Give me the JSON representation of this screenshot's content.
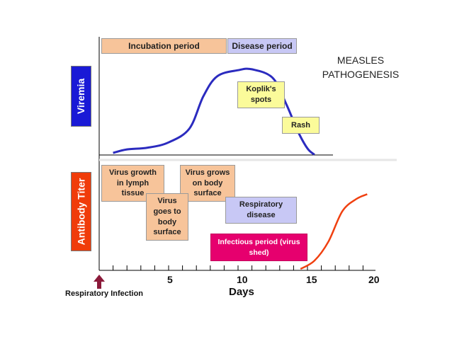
{
  "title": {
    "line1": "MEASLES",
    "line2": "PATHOGENESIS"
  },
  "y_labels": {
    "viremia": "Viremia",
    "antibody": "Antibody Titer"
  },
  "periods": {
    "incubation": "Incubation period",
    "disease": "Disease period"
  },
  "symptoms": {
    "koplik_line1": "Koplik's",
    "koplik_line2": "spots",
    "rash": "Rash"
  },
  "events": {
    "lymph": {
      "l1": "Virus growth",
      "l2": "in lymph",
      "l3": "tissue"
    },
    "body_surface": {
      "l1": "Virus grows",
      "l2": "on body",
      "l3": "surface"
    },
    "goes": {
      "l1": "Virus",
      "l2": "goes to",
      "l3": "body",
      "l4": "surface"
    },
    "respiratory": {
      "l1": "Respiratory",
      "l2": "disease"
    },
    "infectious": {
      "l1": "Infectious period (virus",
      "l2": "shed)"
    }
  },
  "x_axis": {
    "label": "Days",
    "ticks": [
      "5",
      "10",
      "15",
      "20"
    ]
  },
  "footer": "Respiratory Infection",
  "colors": {
    "viremia_label": "#1a1ad6",
    "antibody_label": "#f03c0a",
    "viremia_curve": "#2b2bbf",
    "antibody_curve": "#f04010",
    "marker": "#8b1a3a",
    "divider": "#e6e6e6"
  },
  "curves": {
    "viremia": [
      {
        "day": 1,
        "level": 0.0
      },
      {
        "day": 2,
        "level": 0.04
      },
      {
        "day": 3.5,
        "level": 0.06
      },
      {
        "day": 5,
        "level": 0.12
      },
      {
        "day": 6.5,
        "level": 0.28
      },
      {
        "day": 7.5,
        "level": 0.65
      },
      {
        "day": 8.5,
        "level": 0.88
      },
      {
        "day": 10,
        "level": 0.95
      },
      {
        "day": 11,
        "level": 0.96
      },
      {
        "day": 12.5,
        "level": 0.86
      },
      {
        "day": 13.5,
        "level": 0.55
      },
      {
        "day": 14.3,
        "level": 0.25
      },
      {
        "day": 15,
        "level": 0.05
      },
      {
        "day": 15.5,
        "level": -0.02
      }
    ],
    "antibody": [
      {
        "day": 14.5,
        "level": 0.0
      },
      {
        "day": 15.5,
        "level": 0.1
      },
      {
        "day": 16.5,
        "level": 0.33
      },
      {
        "day": 17.5,
        "level": 0.7
      },
      {
        "day": 18.5,
        "level": 0.85
      },
      {
        "day": 19.3,
        "level": 0.91
      }
    ]
  }
}
